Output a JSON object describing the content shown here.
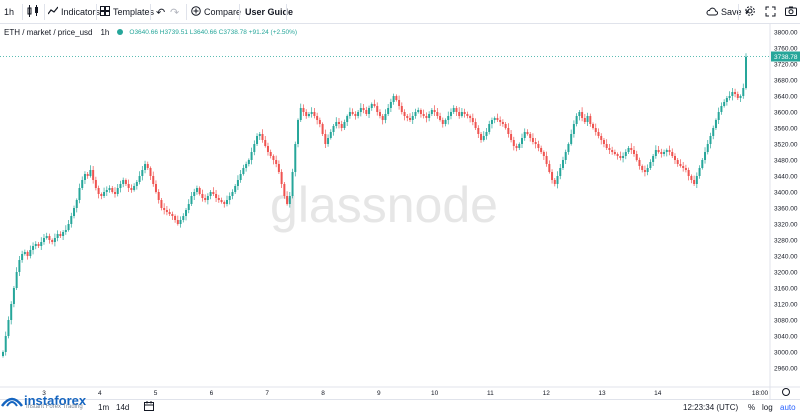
{
  "toolbar": {
    "interval": "1h",
    "indicators_label": "Indicators",
    "templates_label": "Templates",
    "compare_label": "Compare",
    "user_guide_label": "User Guide",
    "save_label": "Save"
  },
  "legend": {
    "symbol": "ETH / market / price_usd",
    "interval": "1h",
    "ohlc": "O3640.66 H3739.51 L3640.66 C3738.78 +91.24 (+2.50%)"
  },
  "watermark": "glassnode",
  "brand": {
    "name": "instaforex",
    "tagline": "Instant Forex Trading"
  },
  "bottombar": {
    "ranges": [
      "1m",
      "14d"
    ],
    "clock": "12:23:34 (UTC)",
    "percent_label": "%",
    "log_label": "log",
    "auto_label": "auto"
  },
  "colors": {
    "up": "#26a69a",
    "down": "#ef5350",
    "accent": "#2962ff"
  },
  "chart_data": {
    "type": "candlestick",
    "title": "ETH / market / price_usd",
    "interval": "1h",
    "ylim": [
      2920,
      3820
    ],
    "x_ticks": [
      "3",
      "4",
      "5",
      "6",
      "7",
      "8",
      "9",
      "10",
      "11",
      "12",
      "13",
      "14",
      "18:00"
    ],
    "y_ticks": [
      3800,
      3760,
      3720,
      3680,
      3640,
      3600,
      3560,
      3520,
      3480,
      3440,
      3400,
      3360,
      3320,
      3280,
      3240,
      3200,
      3160,
      3120,
      3080,
      3040,
      3000,
      2960
    ],
    "last_price": 3738.78,
    "last_price_label": "3738.78",
    "close_series": [
      3000,
      3040,
      3080,
      3120,
      3160,
      3200,
      3230,
      3245,
      3250,
      3240,
      3255,
      3265,
      3270,
      3265,
      3275,
      3285,
      3290,
      3280,
      3275,
      3285,
      3295,
      3290,
      3300,
      3305,
      3320,
      3340,
      3360,
      3380,
      3410,
      3430,
      3445,
      3440,
      3455,
      3430,
      3410,
      3395,
      3390,
      3400,
      3405,
      3410,
      3400,
      3395,
      3410,
      3420,
      3430,
      3420,
      3410,
      3405,
      3415,
      3425,
      3440,
      3455,
      3470,
      3460,
      3440,
      3420,
      3400,
      3380,
      3360,
      3355,
      3350,
      3345,
      3340,
      3330,
      3320,
      3330,
      3340,
      3355,
      3370,
      3390,
      3400,
      3410,
      3395,
      3385,
      3380,
      3390,
      3400,
      3395,
      3385,
      3380,
      3375,
      3370,
      3380,
      3390,
      3400,
      3415,
      3430,
      3445,
      3460,
      3470,
      3480,
      3500,
      3520,
      3540,
      3545,
      3530,
      3515,
      3500,
      3490,
      3480,
      3470,
      3450,
      3420,
      3390,
      3370,
      3390,
      3450,
      3520,
      3580,
      3610,
      3600,
      3590,
      3595,
      3600,
      3590,
      3580,
      3570,
      3545,
      3520,
      3535,
      3550,
      3565,
      3575,
      3570,
      3560,
      3575,
      3590,
      3600,
      3595,
      3590,
      3600,
      3610,
      3605,
      3595,
      3610,
      3620,
      3615,
      3600,
      3590,
      3580,
      3595,
      3610,
      3625,
      3640,
      3630,
      3615,
      3600,
      3590,
      3585,
      3580,
      3590,
      3600,
      3605,
      3595,
      3590,
      3585,
      3595,
      3605,
      3600,
      3590,
      3580,
      3570,
      3580,
      3590,
      3600,
      3610,
      3600,
      3590,
      3600,
      3595,
      3590,
      3585,
      3575,
      3560,
      3545,
      3530,
      3540,
      3550,
      3570,
      3580,
      3585,
      3580,
      3575,
      3570,
      3560,
      3545,
      3530,
      3515,
      3510,
      3520,
      3535,
      3550,
      3545,
      3535,
      3525,
      3520,
      3510,
      3500,
      3490,
      3470,
      3450,
      3430,
      3420,
      3440,
      3460,
      3480,
      3500,
      3520,
      3545,
      3570,
      3590,
      3600,
      3585,
      3575,
      3590,
      3570,
      3560,
      3550,
      3540,
      3530,
      3520,
      3510,
      3505,
      3500,
      3495,
      3490,
      3485,
      3490,
      3500,
      3510,
      3505,
      3495,
      3480,
      3465,
      3455,
      3450,
      3460,
      3475,
      3490,
      3505,
      3500,
      3495,
      3500,
      3505,
      3500,
      3490,
      3480,
      3470,
      3465,
      3460,
      3455,
      3440,
      3430,
      3420,
      3440,
      3460,
      3480,
      3500,
      3520,
      3540,
      3560,
      3580,
      3600,
      3615,
      3625,
      3635,
      3640,
      3650,
      3645,
      3635,
      3640,
      3660,
      3738
    ]
  }
}
